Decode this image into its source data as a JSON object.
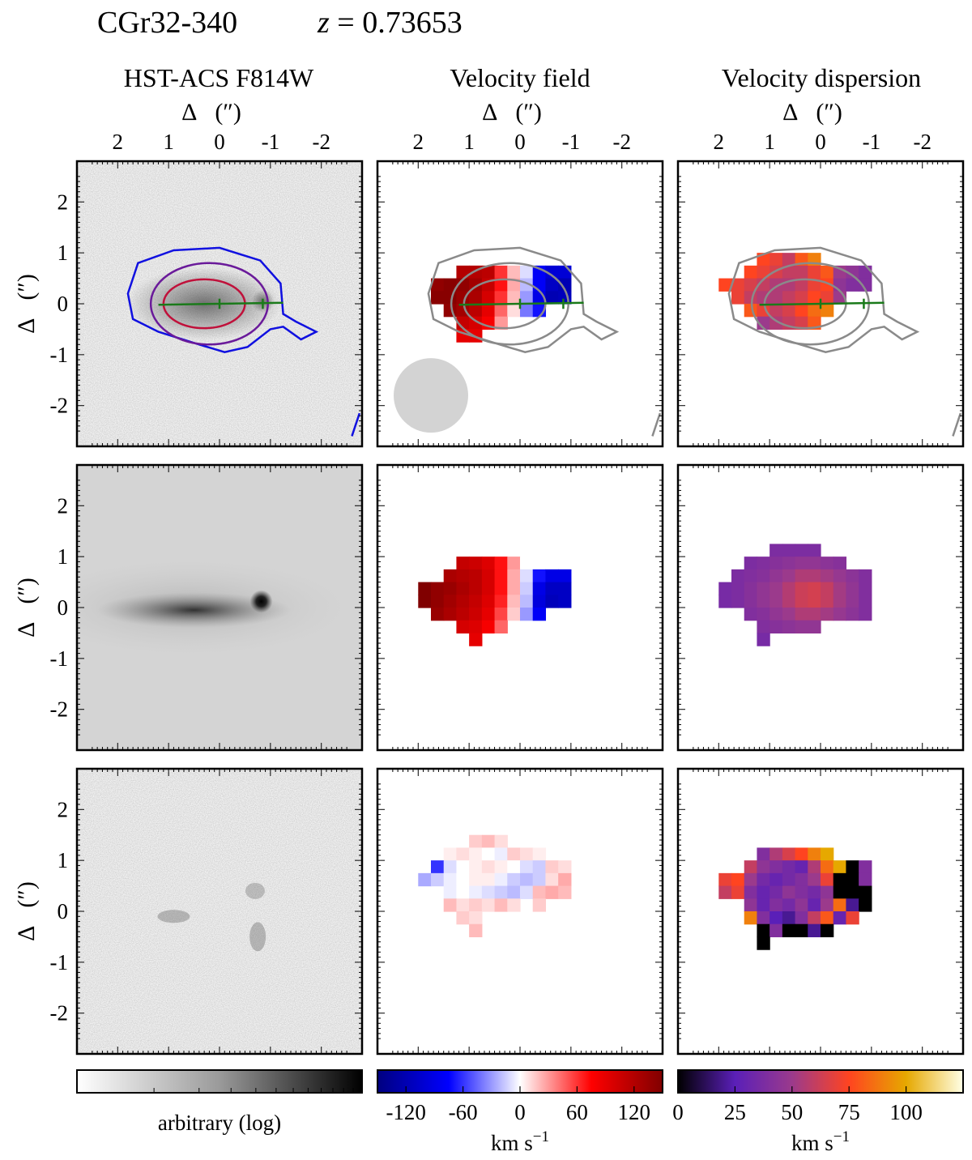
{
  "header": {
    "object": "CGr32-340",
    "redshift_symbol": "z",
    "redshift_eq": " = 0.73653"
  },
  "columns": [
    {
      "title": "HST-ACS F814W"
    },
    {
      "title": "Velocity field"
    },
    {
      "title": "Velocity dispersion"
    }
  ],
  "axes": {
    "label_delta": "Δ",
    "label_unit": "(″)",
    "x_ticks": [
      "2",
      "1",
      "0",
      "-1",
      "-2"
    ],
    "y_ticks": [
      "2",
      "1",
      "0",
      "-1",
      "-2"
    ]
  },
  "colorbars": [
    {
      "name": "image",
      "label": "arbitrary (log)",
      "ticks": [],
      "range": [
        0,
        1
      ]
    },
    {
      "name": "velocity",
      "label_main": "km s",
      "label_sup": "−1",
      "ticks": [
        "-120",
        "-60",
        "0",
        "60",
        "120"
      ],
      "range": [
        -150,
        150
      ],
      "colors": [
        "#000080",
        "#0000ff",
        "#ffffff",
        "#ff0000",
        "#800000"
      ]
    },
    {
      "name": "dispersion",
      "label_main": "km s",
      "label_sup": "−1",
      "ticks": [
        "0",
        "25",
        "50",
        "75",
        "100"
      ],
      "range": [
        0,
        125
      ],
      "colors": [
        "#000000",
        "#5a1fb8",
        "#9b3a8c",
        "#ff4420",
        "#e6a800",
        "#ffffe6"
      ]
    }
  ],
  "chart_data": {
    "type": "heatmap",
    "grid": "3x3 panels: rows = observed, model, residual",
    "extent_arcsec": [
      2.8,
      -2.8
    ],
    "velocity_kms": [
      [
        null,
        null,
        null,
        null,
        null,
        null,
        null,
        null,
        null,
        null,
        null,
        null,
        null,
        null,
        null
      ],
      [
        null,
        null,
        null,
        null,
        null,
        null,
        null,
        null,
        null,
        null,
        null,
        null,
        null,
        null,
        null
      ],
      [
        null,
        null,
        null,
        null,
        null,
        null,
        null,
        null,
        null,
        null,
        null,
        null,
        null,
        null,
        null
      ],
      [
        null,
        null,
        null,
        null,
        null,
        null,
        null,
        null,
        null,
        null,
        null,
        null,
        null,
        null,
        null
      ],
      [
        null,
        null,
        null,
        null,
        120,
        120,
        115,
        60,
        20,
        -10,
        -80,
        -100,
        -100,
        null,
        null
      ],
      [
        null,
        null,
        140,
        145,
        140,
        130,
        110,
        70,
        25,
        -20,
        -80,
        -110,
        -120,
        null,
        null
      ],
      [
        null,
        null,
        145,
        145,
        135,
        125,
        100,
        60,
        20,
        -30,
        -90,
        -120,
        -115,
        null,
        null
      ],
      [
        null,
        null,
        null,
        140,
        130,
        115,
        90,
        45,
        10,
        -40,
        -70,
        null,
        null,
        null,
        null
      ],
      [
        null,
        null,
        null,
        null,
        110,
        100,
        80,
        30,
        null,
        null,
        null,
        null,
        null,
        null,
        null
      ],
      [
        null,
        null,
        null,
        null,
        90,
        90,
        null,
        null,
        null,
        null,
        null,
        null,
        null,
        null,
        null
      ]
    ],
    "velocity_model_kms": [
      [
        null,
        null,
        null,
        null,
        null,
        null,
        null,
        null,
        null,
        null,
        null,
        null,
        null,
        null,
        null
      ],
      [
        null,
        null,
        null,
        null,
        null,
        null,
        null,
        null,
        null,
        null,
        null,
        null,
        null,
        null,
        null
      ],
      [
        null,
        null,
        null,
        null,
        null,
        null,
        null,
        null,
        null,
        null,
        null,
        null,
        null,
        null,
        null
      ],
      [
        null,
        null,
        null,
        null,
        110,
        105,
        95,
        70,
        30,
        0,
        null,
        null,
        null,
        null,
        null
      ],
      [
        null,
        null,
        null,
        125,
        120,
        115,
        100,
        70,
        25,
        -10,
        -70,
        -90,
        -90,
        null,
        null
      ],
      [
        null,
        150,
        140,
        135,
        125,
        115,
        100,
        70,
        25,
        -15,
        -90,
        -110,
        -110,
        null,
        null
      ],
      [
        null,
        150,
        140,
        130,
        120,
        110,
        95,
        65,
        20,
        -20,
        -95,
        -115,
        -110,
        null,
        null
      ],
      [
        null,
        null,
        135,
        125,
        115,
        105,
        90,
        55,
        15,
        -30,
        -80,
        null,
        null,
        null,
        null
      ],
      [
        null,
        null,
        null,
        null,
        100,
        95,
        80,
        45,
        null,
        null,
        null,
        null,
        null,
        null,
        null
      ],
      [
        null,
        null,
        null,
        null,
        null,
        90,
        null,
        null,
        null,
        null,
        null,
        null,
        null,
        null,
        null
      ]
    ],
    "velocity_residual_kms": [
      [
        null,
        null,
        null,
        null,
        null,
        null,
        null,
        null,
        null,
        null,
        null,
        null,
        null,
        null,
        null
      ],
      [
        null,
        null,
        null,
        null,
        null,
        15,
        20,
        10,
        null,
        null,
        null,
        null,
        null,
        null,
        null
      ],
      [
        null,
        null,
        null,
        5,
        10,
        5,
        0,
        -5,
        15,
        10,
        5,
        null,
        null,
        null,
        null
      ],
      [
        null,
        null,
        -60,
        -10,
        0,
        5,
        10,
        5,
        0,
        -10,
        -15,
        15,
        10,
        null,
        null
      ],
      [
        null,
        -25,
        -15,
        -5,
        0,
        5,
        5,
        -5,
        -15,
        -20,
        -15,
        10,
        25,
        null,
        null
      ],
      [
        null,
        null,
        null,
        -5,
        0,
        -5,
        -10,
        -15,
        -20,
        -10,
        20,
        25,
        20,
        null,
        null
      ],
      [
        null,
        null,
        null,
        20,
        10,
        15,
        10,
        20,
        10,
        null,
        15,
        null,
        null,
        null,
        null
      ],
      [
        null,
        null,
        null,
        null,
        15,
        10,
        null,
        null,
        null,
        null,
        null,
        null,
        null,
        null,
        null
      ],
      [
        null,
        null,
        null,
        null,
        null,
        20,
        null,
        null,
        null,
        null,
        null,
        null,
        null,
        null,
        null
      ]
    ],
    "dispersion_kms": [
      [
        null,
        null,
        null,
        null,
        null,
        null,
        null,
        null,
        null,
        null,
        null,
        null,
        null,
        null,
        null
      ],
      [
        null,
        null,
        null,
        null,
        null,
        null,
        null,
        null,
        null,
        null,
        null,
        null,
        null,
        null,
        null
      ],
      [
        null,
        null,
        null,
        null,
        null,
        null,
        null,
        null,
        null,
        null,
        null,
        null,
        null,
        null,
        null
      ],
      [
        null,
        null,
        null,
        null,
        75,
        70,
        60,
        80,
        90,
        null,
        null,
        null,
        null,
        null,
        null
      ],
      [
        null,
        null,
        null,
        75,
        70,
        65,
        60,
        60,
        70,
        80,
        50,
        45,
        40,
        null,
        null
      ],
      [
        null,
        75,
        70,
        65,
        60,
        55,
        55,
        60,
        70,
        75,
        45,
        40,
        40,
        null,
        null
      ],
      [
        null,
        null,
        70,
        60,
        55,
        55,
        60,
        65,
        75,
        70,
        50,
        null,
        null,
        null,
        null
      ],
      [
        null,
        null,
        null,
        80,
        70,
        60,
        65,
        75,
        85,
        90,
        null,
        null,
        null,
        null,
        null
      ],
      [
        null,
        null,
        null,
        null,
        50,
        55,
        60,
        65,
        80,
        null,
        null,
        null,
        null,
        null,
        null
      ],
      [
        null,
        null,
        null,
        null,
        null,
        null,
        null,
        null,
        null,
        null,
        null,
        null,
        null,
        null,
        null
      ]
    ],
    "dispersion_model_kms": [
      [
        null,
        null,
        null,
        null,
        null,
        null,
        null,
        null,
        null,
        null,
        null,
        null,
        null,
        null,
        null
      ],
      [
        null,
        null,
        null,
        null,
        null,
        null,
        null,
        null,
        null,
        null,
        null,
        null,
        null,
        null,
        null
      ],
      [
        null,
        null,
        null,
        null,
        null,
        38,
        38,
        38,
        38,
        null,
        null,
        null,
        null,
        null,
        null
      ],
      [
        null,
        null,
        null,
        38,
        40,
        42,
        44,
        46,
        46,
        44,
        42,
        null,
        null,
        null,
        null
      ],
      [
        null,
        null,
        38,
        40,
        42,
        46,
        50,
        55,
        55,
        52,
        48,
        44,
        40,
        null,
        null
      ],
      [
        null,
        36,
        38,
        42,
        46,
        50,
        56,
        62,
        64,
        60,
        52,
        46,
        40,
        null,
        null
      ],
      [
        null,
        36,
        38,
        42,
        46,
        50,
        56,
        62,
        64,
        60,
        52,
        46,
        40,
        null,
        null
      ],
      [
        null,
        null,
        null,
        40,
        42,
        46,
        50,
        55,
        55,
        52,
        48,
        44,
        40,
        null,
        null
      ],
      [
        null,
        null,
        null,
        null,
        40,
        42,
        44,
        46,
        46,
        null,
        null,
        null,
        null,
        null,
        null
      ],
      [
        null,
        null,
        null,
        null,
        36,
        null,
        null,
        null,
        null,
        null,
        null,
        null,
        null,
        null,
        null
      ]
    ],
    "dispersion_residual_kms": [
      [
        null,
        null,
        null,
        null,
        null,
        null,
        null,
        null,
        null,
        null,
        null,
        null,
        null,
        null,
        null
      ],
      [
        null,
        null,
        null,
        null,
        null,
        null,
        null,
        null,
        null,
        null,
        null,
        null,
        null,
        null,
        null
      ],
      [
        null,
        null,
        null,
        null,
        40,
        55,
        65,
        75,
        90,
        100,
        null,
        null,
        null,
        null,
        null
      ],
      [
        null,
        null,
        null,
        60,
        45,
        40,
        35,
        30,
        55,
        85,
        100,
        0,
        40,
        null,
        null
      ],
      [
        null,
        70,
        75,
        50,
        35,
        30,
        35,
        40,
        50,
        70,
        0,
        0,
        40,
        null,
        null
      ],
      [
        null,
        60,
        70,
        40,
        30,
        35,
        45,
        40,
        35,
        45,
        0,
        0,
        0,
        null,
        null
      ],
      [
        null,
        null,
        null,
        45,
        30,
        40,
        35,
        45,
        30,
        50,
        85,
        20,
        0,
        null,
        null
      ],
      [
        null,
        null,
        null,
        90,
        40,
        25,
        20,
        40,
        60,
        80,
        30,
        70,
        null,
        null,
        null
      ],
      [
        null,
        null,
        null,
        null,
        0,
        40,
        0,
        0,
        20,
        0,
        null,
        null,
        null,
        null,
        null
      ],
      [
        null,
        null,
        null,
        null,
        0,
        null,
        null,
        null,
        null,
        null,
        null,
        null,
        null,
        null,
        null
      ]
    ]
  }
}
